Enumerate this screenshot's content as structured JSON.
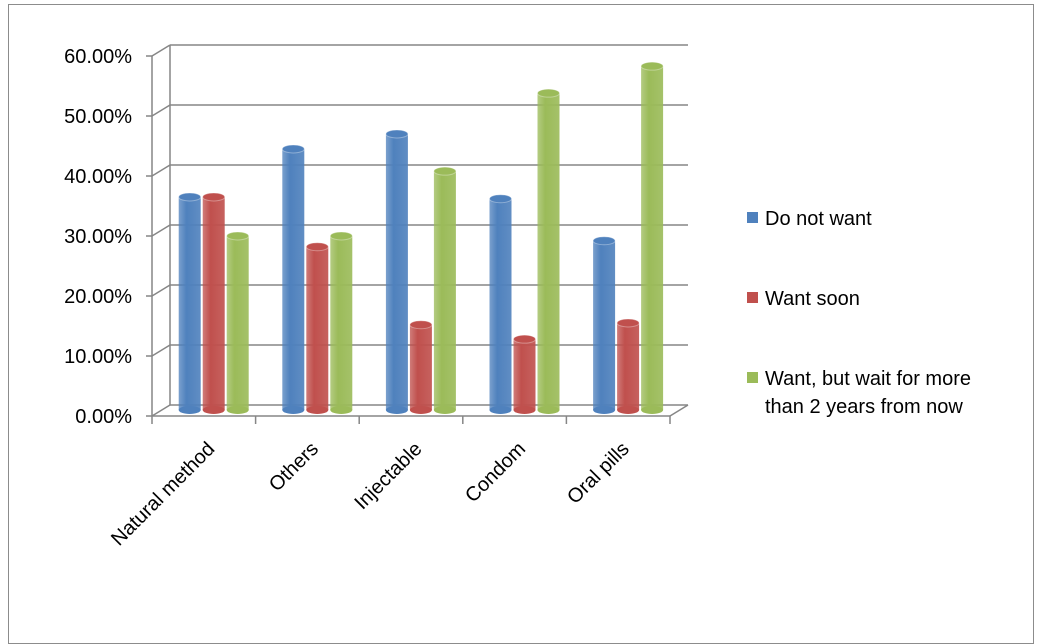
{
  "chart_data": {
    "type": "bar",
    "title": "",
    "xlabel": "",
    "ylabel": "",
    "categories": [
      "Natural method",
      "Others",
      "Injectable",
      "Condom",
      "Oral pills"
    ],
    "ylim": [
      0,
      60
    ],
    "yticks": [
      "0.00%",
      "10.00%",
      "20.00%",
      "30.00%",
      "40.00%",
      "50.00%",
      "60.00%"
    ],
    "grid": true,
    "legend_position": "right",
    "series": [
      {
        "name": "Do not want",
        "color": "#4f81bd",
        "values": [
          35.5,
          43.5,
          46.0,
          35.2,
          28.2
        ]
      },
      {
        "name": "Want soon",
        "color": "#c0504d",
        "values": [
          35.5,
          27.2,
          14.2,
          11.8,
          14.5
        ]
      },
      {
        "name": "Want, but wait for more than 2 years from now",
        "legend_lines": [
          "Want, but wait for more",
          "than 2 years from now"
        ],
        "color": "#9bbb59",
        "values": [
          29.0,
          29.0,
          39.8,
          52.8,
          57.3
        ]
      }
    ]
  }
}
